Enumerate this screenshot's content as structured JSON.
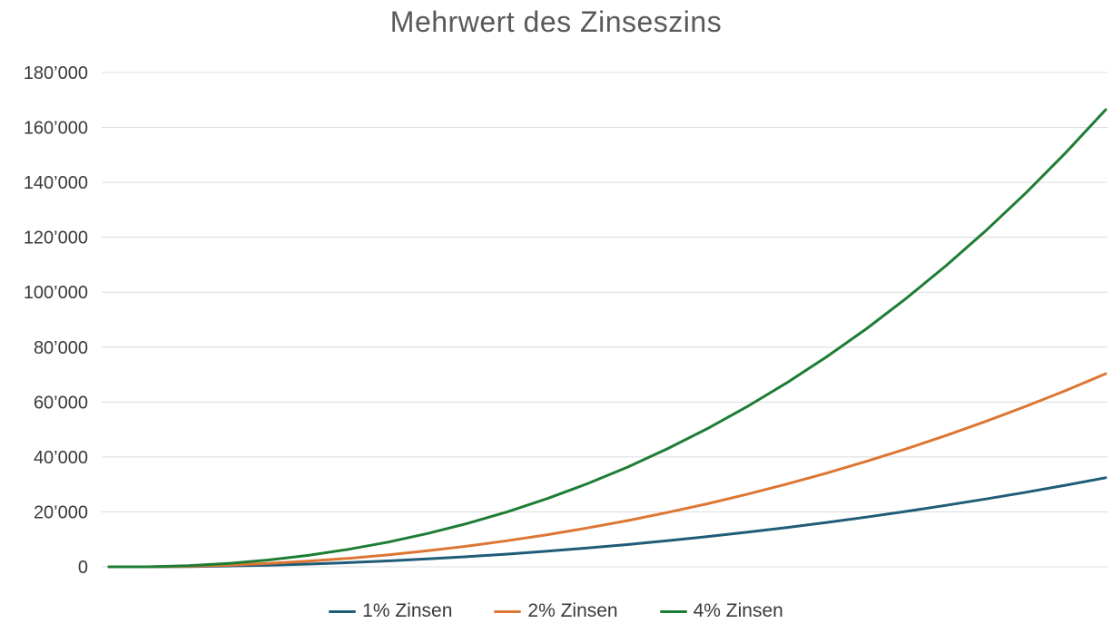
{
  "page": {
    "background_color": "#ffffff",
    "title_color": "#595959",
    "axis_label_color": "#3a3a3a",
    "gridline_color": "#dcdcdc"
  },
  "chart_data": {
    "type": "line",
    "title": "Mehrwert des Zinseszins",
    "xlabel": "",
    "ylabel": "",
    "x": [
      0,
      1,
      2,
      3,
      4,
      5,
      6,
      7,
      8,
      9,
      10,
      11,
      12,
      13,
      14,
      15,
      16,
      17,
      18,
      19,
      20,
      21,
      22,
      23,
      24,
      25
    ],
    "x_tick_labels_visible": false,
    "ylim": [
      0,
      180000
    ],
    "ytick_step": 20000,
    "yticks": [
      {
        "value": 0,
        "label": "0"
      },
      {
        "value": 20000,
        "label": "20’000"
      },
      {
        "value": 40000,
        "label": "40’000"
      },
      {
        "value": 60000,
        "label": "60’000"
      },
      {
        "value": 80000,
        "label": "80’000"
      },
      {
        "value": 100000,
        "label": "100’000"
      },
      {
        "value": 120000,
        "label": "120’000"
      },
      {
        "value": 140000,
        "label": "140’000"
      },
      {
        "value": 160000,
        "label": "160’000"
      },
      {
        "value": 180000,
        "label": "180’000"
      }
    ],
    "grid": "horizontal",
    "legend_position": "bottom",
    "series": [
      {
        "name": "1% Zinsen",
        "color": "#1f5c78",
        "values": [
          0,
          0,
          100,
          300,
          600,
          1000,
          1520,
          2140,
          2860,
          3690,
          4620,
          5670,
          6830,
          8090,
          9470,
          10970,
          12580,
          14300,
          16150,
          18110,
          20190,
          22390,
          24720,
          27160,
          29740,
          32430
        ]
      },
      {
        "name": "2% Zinsen",
        "color": "#dd7633",
        "values": [
          0,
          0,
          200,
          600,
          1220,
          2040,
          3080,
          4340,
          5830,
          7550,
          9500,
          11690,
          14120,
          16800,
          19740,
          22930,
          26390,
          30120,
          34120,
          38410,
          42970,
          47830,
          52990,
          58450,
          64220,
          70300
        ]
      },
      {
        "name": "4% Zinsen",
        "color": "#1e7d34",
        "values": [
          0,
          0,
          400,
          1220,
          2470,
          4170,
          6330,
          8980,
          12140,
          15830,
          20060,
          24860,
          30260,
          36270,
          42920,
          50240,
          58250,
          66980,
          76450,
          86710,
          97780,
          109690,
          122480,
          136180,
          150830,
          166460
        ]
      }
    ]
  }
}
